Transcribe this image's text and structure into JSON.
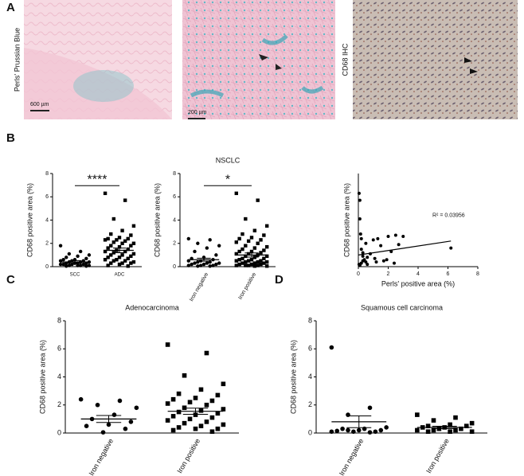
{
  "panel_labels": [
    "A",
    "B",
    "C",
    "D"
  ],
  "images": [
    {
      "label": "Perls' Prussian Blue",
      "scale_bar": "600 µm"
    },
    {
      "scale_bar": "200 µm"
    },
    {
      "label": "CD68 IHC"
    }
  ],
  "chart_data": [
    {
      "type": "strip",
      "ylabel": "CD68  positive area (%)",
      "ylim": [
        0,
        8
      ],
      "yticks": [
        0,
        2,
        4,
        6,
        8
      ],
      "significance": "****",
      "groups": [
        {
          "name": "SCC",
          "marker": "circle",
          "mean": 0.4,
          "sem": 0.12,
          "values": [
            1.8,
            1.3,
            1.1,
            1.0,
            0.9,
            0.8,
            0.7,
            0.6,
            0.6,
            0.5,
            0.5,
            0.5,
            0.4,
            0.4,
            0.4,
            0.3,
            0.3,
            0.3,
            0.3,
            0.2,
            0.2,
            0.2,
            0.2,
            0.1,
            0.1,
            0.1,
            0.1,
            0.05,
            0.05,
            0.3
          ]
        },
        {
          "name": "ADC",
          "marker": "square",
          "mean": 1.4,
          "sem": 0.2,
          "values": [
            6.3,
            5.7,
            4.1,
            3.5,
            3.1,
            2.8,
            2.7,
            2.5,
            2.4,
            2.4,
            2.3,
            2.3,
            2.2,
            2.1,
            2.0,
            2.0,
            1.8,
            1.8,
            1.7,
            1.6,
            1.5,
            1.4,
            1.3,
            1.3,
            1.2,
            1.1,
            1.0,
            1.0,
            0.9,
            0.8,
            0.8,
            0.7,
            0.6,
            0.6,
            0.5,
            0.5,
            0.4,
            0.3,
            0.3,
            0.3,
            0.2,
            0.1,
            0.05
          ]
        }
      ]
    },
    {
      "type": "strip",
      "title": "NSCLC",
      "ylabel": "CD68  positive area (%)",
      "ylim": [
        0,
        8
      ],
      "yticks": [
        0,
        2,
        4,
        6,
        8
      ],
      "significance": "*",
      "groups": [
        {
          "name": "Iron negative",
          "marker": "circle",
          "mean": 0.6,
          "sem": 0.13,
          "values": [
            2.4,
            2.3,
            2.0,
            1.8,
            1.6,
            1.3,
            1.0,
            0.8,
            0.7,
            0.6,
            0.5,
            0.5,
            0.4,
            0.4,
            0.3,
            0.3,
            0.3,
            0.2,
            0.2,
            0.2,
            0.1,
            0.1,
            0.1,
            0.05,
            0.05
          ]
        },
        {
          "name": "Iron positive",
          "marker": "square",
          "mean": 1.0,
          "sem": 0.18,
          "values": [
            6.3,
            5.7,
            4.1,
            3.5,
            3.1,
            2.8,
            2.7,
            2.5,
            2.4,
            2.3,
            2.2,
            2.1,
            2.0,
            1.8,
            1.7,
            1.6,
            1.5,
            1.4,
            1.3,
            1.3,
            1.2,
            1.1,
            1.1,
            1.0,
            0.9,
            0.9,
            0.8,
            0.7,
            0.7,
            0.6,
            0.6,
            0.5,
            0.5,
            0.5,
            0.4,
            0.4,
            0.4,
            0.3,
            0.3,
            0.3,
            0.2,
            0.2,
            0.2,
            0.1,
            0.1,
            0.1,
            0.1,
            0.05,
            0.05
          ]
        }
      ]
    },
    {
      "type": "scatter",
      "xlabel": "Perls'  positive area (%)",
      "ylabel": "CD68  positive area (%)",
      "annotation": "R² = 0.03956",
      "xlim": [
        0,
        8
      ],
      "xticks": [
        0,
        2,
        4,
        6,
        8
      ],
      "ylim": [
        0,
        8
      ],
      "x": [
        0.05,
        0.1,
        0.1,
        0.15,
        0.2,
        0.2,
        0.3,
        0.3,
        0.4,
        0.5,
        0.5,
        0.6,
        0.8,
        1.0,
        1.1,
        1.3,
        1.5,
        1.7,
        2.0,
        2.2,
        2.5,
        2.7,
        3.0,
        0.05,
        0.1,
        0.2,
        0.3,
        0.6,
        1.2,
        1.9,
        2.4,
        6.2
      ],
      "y": [
        6.3,
        5.7,
        4.1,
        2.8,
        2.4,
        1.5,
        1.2,
        0.9,
        0.6,
        2.0,
        0.4,
        0.8,
        1.1,
        2.3,
        0.7,
        2.4,
        1.8,
        0.5,
        2.6,
        1.3,
        2.7,
        1.9,
        2.6,
        0.2,
        0.1,
        0.3,
        0.5,
        0.2,
        0.4,
        0.6,
        0.3,
        1.6
      ],
      "fit": {
        "x": [
          0,
          6.2
        ],
        "y": [
          1.0,
          2.2
        ]
      }
    },
    {
      "type": "strip",
      "title": "Adenocarcinoma",
      "ylabel": "CD68  positive area (%)",
      "ylim": [
        0,
        8
      ],
      "yticks": [
        0,
        2,
        4,
        6,
        8
      ],
      "groups": [
        {
          "name": "Iron negative",
          "marker": "circle",
          "mean": 1.0,
          "sem": 0.25,
          "values": [
            2.4,
            2.3,
            2.0,
            1.8,
            1.3,
            1.0,
            0.8,
            0.6,
            0.5,
            0.3,
            0.05
          ]
        },
        {
          "name": "Iron positive",
          "marker": "square",
          "mean": 1.55,
          "sem": 0.22,
          "values": [
            6.3,
            5.7,
            4.1,
            3.5,
            3.1,
            2.8,
            2.7,
            2.5,
            2.4,
            2.3,
            2.2,
            2.1,
            2.0,
            1.8,
            1.7,
            1.6,
            1.5,
            1.4,
            1.3,
            1.2,
            1.1,
            1.0,
            0.9,
            0.8,
            0.7,
            0.6,
            0.5,
            0.4,
            0.3,
            0.3,
            0.2,
            0.1
          ]
        }
      ]
    },
    {
      "type": "strip",
      "title": "Squamous cell carcinoma",
      "ylabel": "CD68  positive area (%)",
      "ylim": [
        0,
        8
      ],
      "yticks": [
        0,
        2,
        4,
        6,
        8
      ],
      "groups": [
        {
          "name": "Iron negative",
          "marker": "circle",
          "mean": 0.8,
          "sem": 0.42,
          "values": [
            6.1,
            1.8,
            1.3,
            0.4,
            0.3,
            0.3,
            0.2,
            0.2,
            0.15,
            0.1,
            0.1,
            0.1,
            0.05,
            0.2
          ]
        },
        {
          "name": "Iron positive",
          "marker": "square",
          "mean": 0.4,
          "sem": 0.08,
          "values": [
            1.3,
            1.1,
            0.9,
            0.7,
            0.6,
            0.5,
            0.5,
            0.4,
            0.4,
            0.3,
            0.3,
            0.2,
            0.2,
            0.2,
            0.1,
            0.1,
            0.1
          ]
        }
      ]
    }
  ]
}
